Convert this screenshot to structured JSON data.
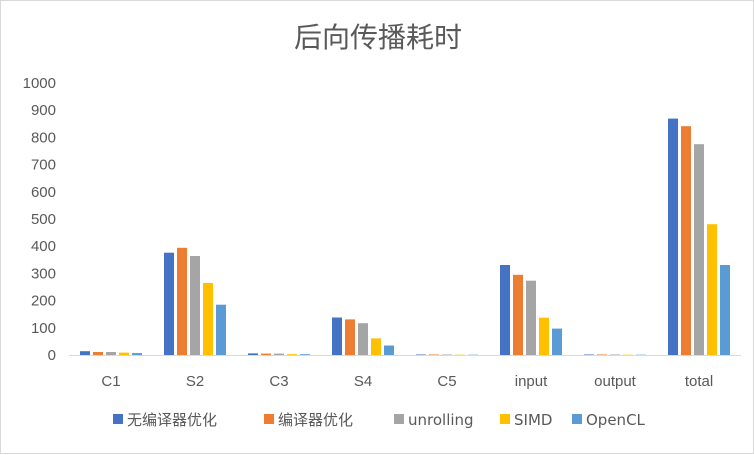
{
  "chart_data": {
    "type": "bar",
    "title": "后向传播耗时",
    "categories": [
      "C1",
      "S2",
      "C3",
      "S4",
      "C5",
      "input",
      "output",
      "total"
    ],
    "ylim": [
      0,
      1000
    ],
    "yticks": [
      0,
      100,
      200,
      300,
      400,
      500,
      600,
      700,
      800,
      900,
      1000
    ],
    "grid": false,
    "legend_position": "bottom",
    "series": [
      {
        "name": "无编译器优化",
        "color": "#4472C4",
        "values": [
          14,
          376,
          6,
          138,
          2,
          331,
          2,
          869
        ]
      },
      {
        "name": "编译器优化",
        "color": "#ED7D31",
        "values": [
          11,
          394,
          5,
          131,
          2,
          295,
          2,
          841
        ]
      },
      {
        "name": "unrolling",
        "color": "#A5A5A5",
        "values": [
          11,
          364,
          5,
          117,
          2,
          273,
          2,
          775
        ]
      },
      {
        "name": "SIMD",
        "color": "#FFC000",
        "values": [
          9,
          265,
          3,
          61,
          1,
          137,
          1,
          481
        ]
      },
      {
        "name": "OpenCL",
        "color": "#5B9BD5",
        "values": [
          7,
          185,
          3,
          35,
          1,
          97,
          1,
          331
        ]
      }
    ]
  }
}
